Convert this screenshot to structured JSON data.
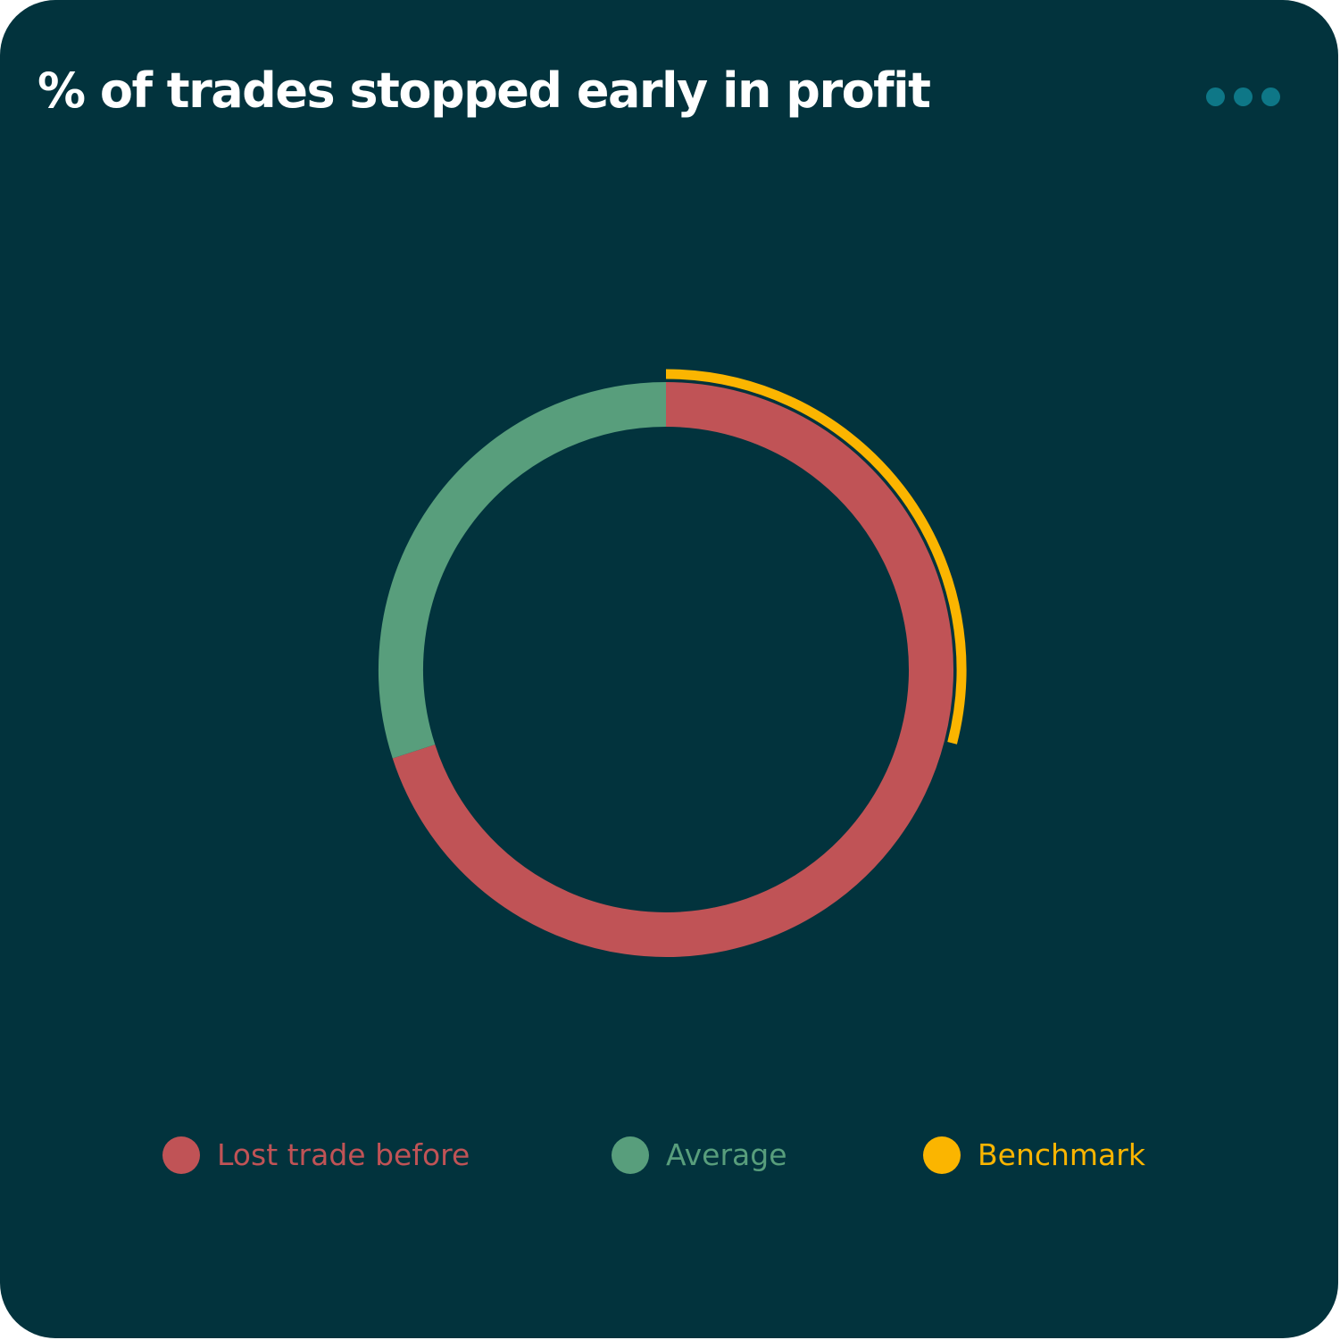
{
  "header": {
    "title": "% of trades stopped early in profit",
    "menu_icon": "more-horizontal-icon"
  },
  "colors": {
    "background": "#02333d",
    "title": "#ffffff",
    "menu": "#0e7787",
    "lost_trade_before": "#c05356",
    "average": "#589e7c",
    "benchmark": "#fbb500"
  },
  "chart_data": {
    "type": "donut",
    "title": "% of trades stopped early in profit",
    "series": [
      {
        "name": "Lost trade before",
        "value": 70,
        "color": "#c05356",
        "ring": "main"
      },
      {
        "name": "Average",
        "value": 30,
        "color": "#589e7c",
        "ring": "main"
      },
      {
        "name": "Benchmark",
        "value": 29,
        "color": "#fbb500",
        "ring": "outer"
      }
    ],
    "start_angle": "12 o'clock",
    "direction": "clockwise",
    "legend_position": "bottom"
  },
  "legend": {
    "items": [
      {
        "label": "Lost trade before",
        "color": "#c05356"
      },
      {
        "label": "Average",
        "color": "#589e7c"
      },
      {
        "label": "Benchmark",
        "color": "#fbb500"
      }
    ]
  }
}
